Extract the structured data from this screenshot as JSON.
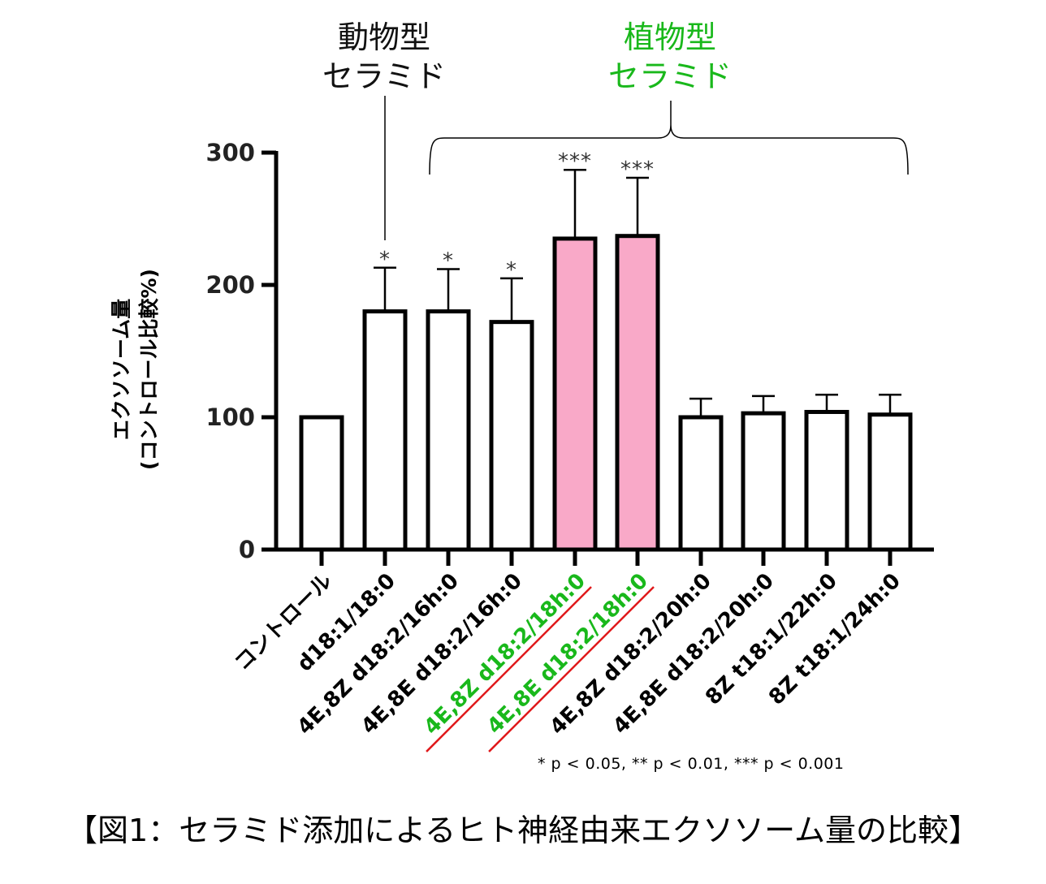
{
  "caption": "【図1：セラミド添加によるヒト神経由来エクソソーム量の比較】",
  "p_note": "* p < 0.05, ** p < 0.01, *** p < 0.001",
  "groups": {
    "animal": {
      "line1": "動物型",
      "line2": "セラミド",
      "color": "#111111"
    },
    "plant": {
      "line1": "植物型",
      "line2": "セラミド",
      "color": "#19b81b"
    }
  },
  "chart_data": {
    "type": "bar",
    "ylabel_line1": "エクソソーム量",
    "ylabel_line2": "(コントロール比較%)",
    "ylim": [
      0,
      300
    ],
    "yticks": [
      0,
      100,
      200,
      300
    ],
    "categories": [
      "コントロール",
      "d18:1/18:0",
      "4E,8Z d18:2/16h:0",
      "4E,8E d18:2/16h:0",
      "4E,8Z d18:2/18h:0",
      "4E,8E d18:2/18h:0",
      "4E,8Z d18:2/20h:0",
      "4E,8E d18:2/20h:0",
      "8Z t18:1/22h:0",
      "8Z t18:1/24h:0"
    ],
    "values": [
      100,
      180,
      180,
      172,
      235,
      237,
      100,
      103,
      104,
      102
    ],
    "error_upper": [
      0,
      213,
      212,
      205,
      287,
      281,
      114,
      116,
      117,
      117
    ],
    "significance": [
      "",
      "*",
      "*",
      "*",
      "***",
      "***",
      "",
      "",
      "",
      ""
    ],
    "highlighted": [
      false,
      false,
      false,
      false,
      true,
      true,
      false,
      false,
      false,
      false
    ],
    "colors": {
      "bar_fill": "#ffffff",
      "highlight_fill": "#f9a9c8",
      "stroke": "#000000",
      "highlight_label": "#19b81b",
      "underline": "#e0191b"
    }
  }
}
